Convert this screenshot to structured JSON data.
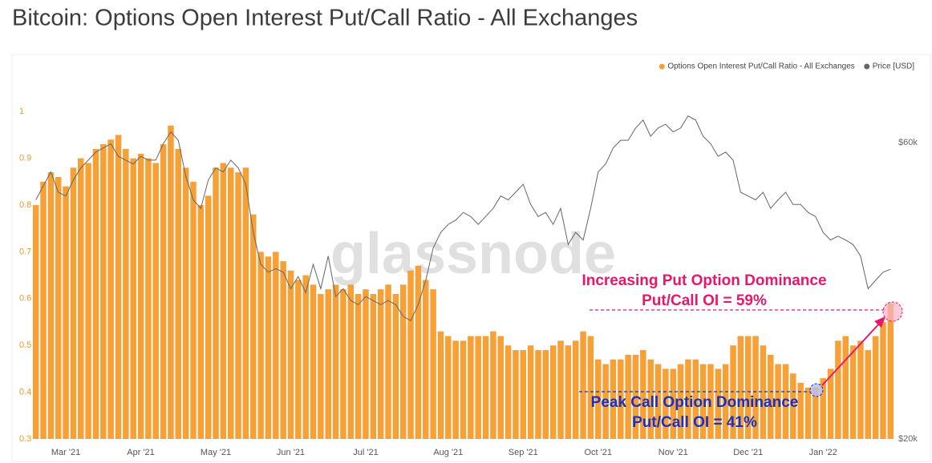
{
  "chart_data": {
    "type": "bar",
    "title": "Bitcoin: Options Open Interest Put/Call Ratio - All Exchanges",
    "watermark": "glassnode",
    "categories": [
      null,
      null,
      null,
      null,
      "Mar '21",
      null,
      null,
      null,
      null,
      null,
      null,
      null,
      null,
      null,
      "Apr '21",
      null,
      null,
      null,
      null,
      null,
      null,
      null,
      null,
      null,
      "May '21",
      null,
      null,
      null,
      null,
      null,
      null,
      null,
      null,
      null,
      "Jun '21",
      null,
      null,
      null,
      null,
      null,
      null,
      null,
      null,
      null,
      "Jul '21",
      null,
      null,
      null,
      null,
      null,
      null,
      null,
      null,
      null,
      null,
      "Aug '21",
      null,
      null,
      null,
      null,
      null,
      null,
      null,
      null,
      null,
      "Sep '21",
      null,
      null,
      null,
      null,
      null,
      null,
      null,
      null,
      null,
      "Oct '21",
      null,
      null,
      null,
      null,
      null,
      null,
      null,
      null,
      null,
      "Nov '21",
      null,
      null,
      null,
      null,
      null,
      null,
      null,
      null,
      null,
      "Dec '21",
      null,
      null,
      null,
      null,
      null,
      null,
      null,
      null,
      null,
      "Jan '22",
      null,
      null,
      null,
      null,
      null,
      null,
      null,
      null,
      null
    ],
    "series": [
      {
        "name": "Options Open Interest Put/Call Ratio - All Exchanges",
        "type": "bar",
        "color": "#f7a035",
        "values": [
          0.8,
          0.85,
          0.87,
          0.86,
          0.84,
          0.88,
          0.9,
          0.89,
          0.92,
          0.93,
          0.94,
          0.95,
          0.92,
          0.9,
          0.91,
          0.9,
          0.89,
          0.93,
          0.97,
          0.92,
          0.88,
          0.85,
          0.8,
          0.82,
          0.88,
          0.89,
          0.88,
          0.87,
          0.88,
          0.78,
          0.7,
          0.69,
          0.7,
          0.68,
          0.66,
          0.64,
          0.65,
          0.63,
          0.61,
          0.62,
          0.63,
          0.62,
          0.63,
          0.61,
          0.62,
          0.61,
          0.62,
          0.63,
          0.61,
          0.63,
          0.66,
          0.67,
          0.64,
          0.62,
          0.53,
          0.52,
          0.51,
          0.51,
          0.52,
          0.52,
          0.52,
          0.53,
          0.52,
          0.5,
          0.49,
          0.49,
          0.5,
          0.49,
          0.49,
          0.5,
          0.51,
          0.5,
          0.51,
          0.53,
          0.52,
          0.47,
          0.46,
          0.47,
          0.47,
          0.48,
          0.48,
          0.49,
          0.47,
          0.46,
          0.45,
          0.45,
          0.46,
          0.47,
          0.47,
          0.46,
          0.46,
          0.45,
          0.46,
          0.5,
          0.52,
          0.52,
          0.52,
          0.5,
          0.48,
          0.46,
          0.46,
          0.44,
          0.42,
          0.41,
          0.41,
          0.43,
          0.45,
          0.51,
          0.52,
          0.5,
          0.51,
          0.49,
          0.52,
          0.55,
          0.59
        ]
      },
      {
        "name": "Price [USD]",
        "type": "line",
        "axis": "y2",
        "color": "#666666",
        "values": [
          48500,
          51100,
          53800,
          49900,
          49200,
          52200,
          54600,
          56200,
          57900,
          58800,
          59700,
          57000,
          56200,
          55400,
          57000,
          56200,
          56200,
          59700,
          62400,
          60500,
          53000,
          48500,
          47000,
          52200,
          54600,
          53800,
          56200,
          54600,
          51400,
          43000,
          38200,
          37100,
          37600,
          37100,
          34900,
          36500,
          34400,
          38200,
          34900,
          39400,
          33900,
          34900,
          33400,
          32900,
          33900,
          33400,
          32900,
          33400,
          32900,
          31500,
          31000,
          32900,
          36000,
          40600,
          43000,
          44300,
          45000,
          46300,
          45600,
          44300,
          45600,
          47000,
          49200,
          48500,
          49900,
          51400,
          47700,
          45600,
          46300,
          44300,
          47000,
          41100,
          43000,
          41800,
          47000,
          53800,
          55400,
          58800,
          60500,
          60500,
          63300,
          65200,
          61400,
          63300,
          64200,
          62400,
          63300,
          66200,
          65200,
          61400,
          59700,
          57000,
          57900,
          56200,
          49900,
          49200,
          48500,
          49900,
          47000,
          48500,
          49900,
          47700,
          47700,
          46300,
          45600,
          43000,
          41800,
          42400,
          41800,
          41100,
          39400,
          34900,
          36000,
          37100,
          37500
        ]
      }
    ],
    "ylim": [
      0.3,
      1.08
    ],
    "yticks": [
      0.3,
      0.4,
      0.5,
      0.6,
      0.7,
      0.8,
      0.9,
      1
    ],
    "y2lim": [
      20000,
      77300
    ],
    "y2log": true,
    "y2ticks": [
      {
        "value": 20000,
        "label": "$20k"
      },
      {
        "value": 60000,
        "label": "$60k"
      }
    ],
    "grid": false,
    "legend": "top-right",
    "annotations": [
      {
        "text": "Increasing Put Option Dominance",
        "color": "#e8176b"
      },
      {
        "text": "Put/Call OI = 59%",
        "color": "#e8176b"
      },
      {
        "text": "Peak Call Option Dominance",
        "color": "#1a2fc4"
      },
      {
        "text": "Put/Call OI = 41%",
        "color": "#1a2fc4"
      }
    ]
  }
}
